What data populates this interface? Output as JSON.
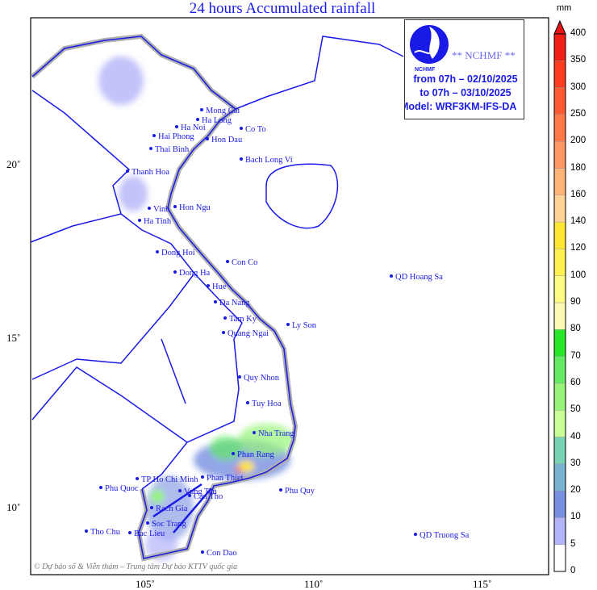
{
  "title": "24 hours Accumulated rainfall",
  "info_box": {
    "logo_text": "NCHMF",
    "tag": "** NCHMF **",
    "from": "from 07h – 02/10/2025",
    "to": "to 07h – 03/10/2025",
    "model": "Model: WRF3KM-IFS-DA"
  },
  "colorbar": {
    "unit": "mm",
    "labels": [
      "0",
      "5",
      "10",
      "20",
      "30",
      "40",
      "50",
      "60",
      "70",
      "80",
      "90",
      "100",
      "120",
      "140",
      "160",
      "180",
      "200",
      "250",
      "300",
      "350",
      "400"
    ],
    "colors": [
      "#ffffff",
      "#b4b4fa",
      "#7890e0",
      "#78b4d2",
      "#78d2b4",
      "#c8ff96",
      "#96f578",
      "#64eb64",
      "#28e628",
      "#fafab4",
      "#fffa82",
      "#fff050",
      "#ffe632",
      "#ffd296",
      "#ffb478",
      "#ff9664",
      "#ff7846",
      "#ff5a32",
      "#ff3c1e",
      "#f01e14"
    ],
    "arrow_color": "#e61414"
  },
  "axes": {
    "lat_labels": [
      "20˚",
      "15˚",
      "10˚"
    ],
    "lon_labels": [
      "105˚",
      "110˚",
      "115˚"
    ]
  },
  "places": [
    "Mong Cai",
    "Ha Long",
    "Ha Noi",
    "Co To",
    "Hai Phong",
    "Hon Dau",
    "Thai Binh",
    "Bach Long Vi",
    "Thanh Hoa",
    "Vinh",
    "Hon Ngu",
    "Ha Tinh",
    "Dong Hoi",
    "Con Co",
    "Dong Ha",
    "Hue",
    "QD Hoang Sa",
    "Da Nang",
    "Tam Ky",
    "Ly Son",
    "Quang Ngai",
    "Quy Nhon",
    "Tuy Hoa",
    "Nha Trang",
    "Phan Rang",
    "TP Ho Chi Minh",
    "Phan Thiet",
    "Phu Quy",
    "Phu Quoc",
    "Vung Tau",
    "Rach Gia",
    "Can Tho",
    "Tho Chu",
    "Soc Trang",
    "Bac Lieu",
    "QD Truong Sa",
    "Con Dao"
  ],
  "credit": "© Dự báo số & Viễn thám – Trung tâm Dự báo KTTV quốc gia",
  "map_colors": {
    "border": "#1a1ae6",
    "shore_shadow": "#b0b0b0"
  }
}
